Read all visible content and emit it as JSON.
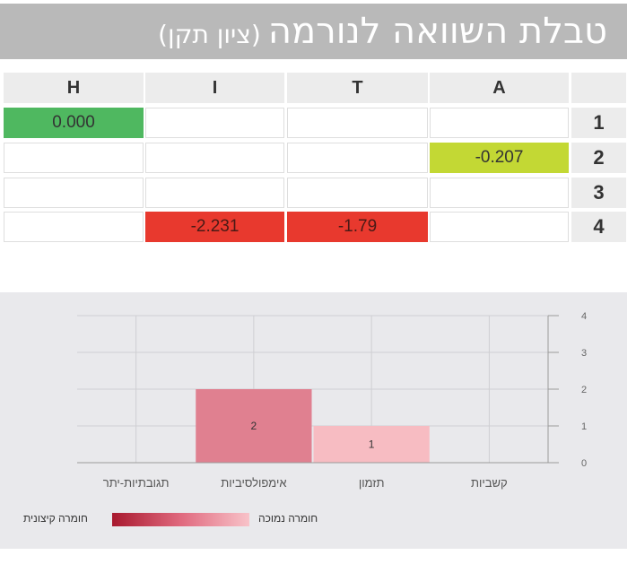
{
  "title": {
    "main": "טבלת השוואה לנורמה",
    "sub": "(ציון תקן)"
  },
  "table": {
    "columns": [
      "H",
      "I",
      "T",
      "A"
    ],
    "rows": [
      {
        "label": "1",
        "cells": [
          "0.000",
          "",
          "",
          ""
        ],
        "colors": [
          "green",
          "",
          "",
          ""
        ]
      },
      {
        "label": "2",
        "cells": [
          "",
          "",
          "",
          "-0.207"
        ],
        "colors": [
          "",
          "",
          "",
          "lime"
        ]
      },
      {
        "label": "3",
        "cells": [
          "",
          "",
          "",
          ""
        ],
        "colors": [
          "",
          "",
          "",
          ""
        ]
      },
      {
        "label": "4",
        "cells": [
          "",
          "-2.231",
          "-1.79",
          ""
        ],
        "colors": [
          "",
          "red",
          "red",
          ""
        ]
      }
    ]
  },
  "colors": {
    "green": "#4fb860",
    "lime": "#c3d834",
    "red": "#e8392e",
    "bar_dark": "#e08090",
    "bar_light": "#f7bcc2"
  },
  "chart_data": {
    "type": "bar",
    "categories": [
      "תגובתיות-יתר",
      "אימפולסיביות",
      "תזמון",
      "קשביות"
    ],
    "values": [
      0,
      2,
      1,
      0
    ],
    "value_labels": [
      "",
      "2",
      "1",
      ""
    ],
    "ylim": [
      0,
      4
    ],
    "yticks": [
      "0",
      "1",
      "2",
      "3",
      "4"
    ],
    "y_axis_side": "right",
    "grid": true,
    "legend": {
      "left_label": "חומרה קיצונית",
      "right_label": "חומרה נמוכה",
      "placement": "bottom"
    }
  }
}
